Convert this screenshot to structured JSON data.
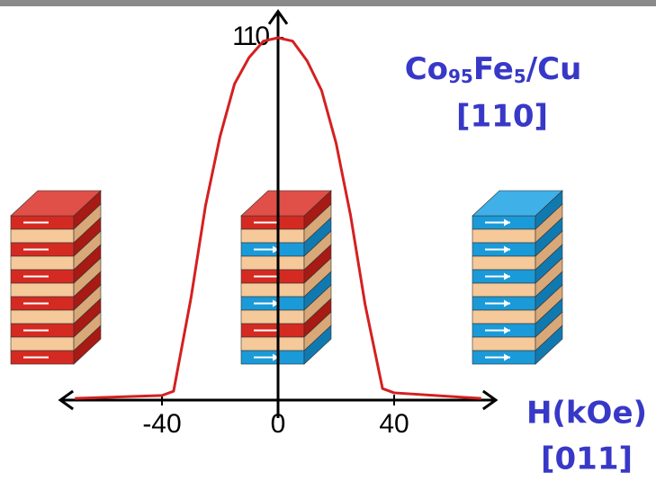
{
  "chart_data": {
    "type": "line",
    "label_parts": [
      "Co",
      "95",
      "Fe",
      "5",
      "/Cu"
    ],
    "direction_label": "[110]",
    "x_label": "H(kOe)",
    "x_direction_label": "[011]",
    "x": [
      -70,
      -40,
      -36,
      -30,
      -25,
      -20,
      -15,
      -10,
      -5,
      0,
      5,
      10,
      15,
      20,
      25,
      30,
      36,
      40,
      70
    ],
    "series": [
      {
        "color": "#d42020",
        "values": [
          0.5,
          1.4,
          2.7,
          31,
          59,
          80,
          96,
          104,
          109,
          110,
          109,
          103,
          94,
          78,
          56,
          29,
          3.5,
          2.2,
          0.5
        ]
      }
    ],
    "xlim": [
      -75,
      75
    ],
    "xticks": [
      -40,
      0,
      40
    ],
    "ylim": [
      0,
      118
    ],
    "yticks": [
      110
    ]
  }
}
